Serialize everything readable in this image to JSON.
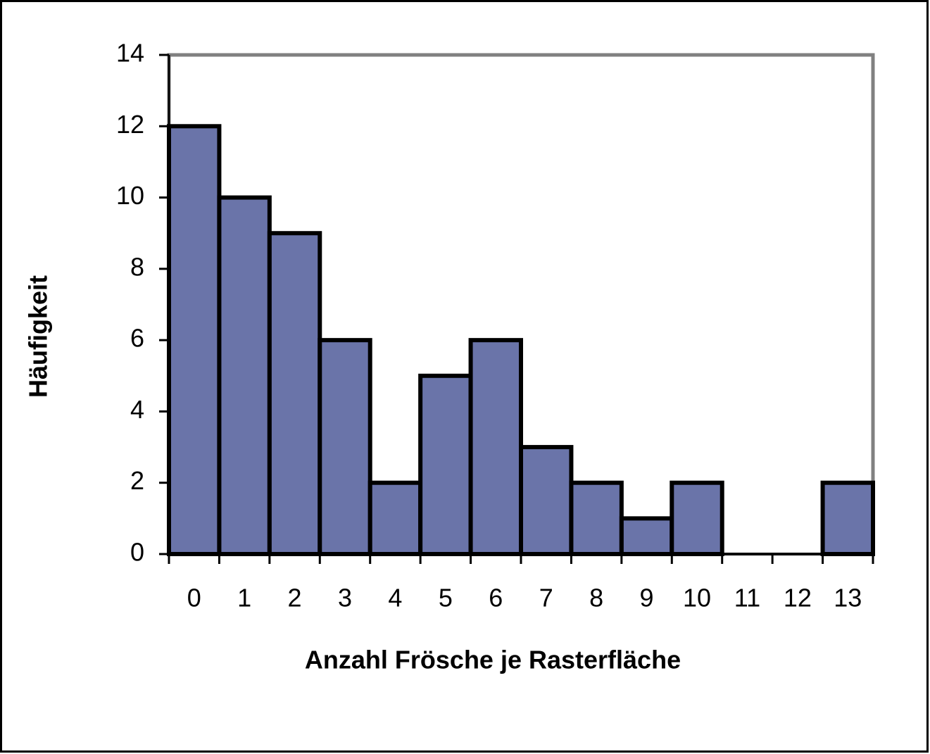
{
  "chart_data": {
    "type": "bar",
    "categories": [
      "0",
      "1",
      "2",
      "3",
      "4",
      "5",
      "6",
      "7",
      "8",
      "9",
      "10",
      "11",
      "12",
      "13"
    ],
    "values": [
      12,
      10,
      9,
      6,
      2,
      5,
      6,
      3,
      2,
      1,
      2,
      0,
      0,
      2
    ],
    "color": "#6a74a9",
    "xlabel": "Anzahl Frösche je Rasterfläche",
    "ylabel": "Häufigkeit",
    "ylim": [
      0,
      14
    ],
    "yticks": [
      0,
      2,
      4,
      6,
      8,
      10,
      12,
      14
    ],
    "grid": false
  }
}
